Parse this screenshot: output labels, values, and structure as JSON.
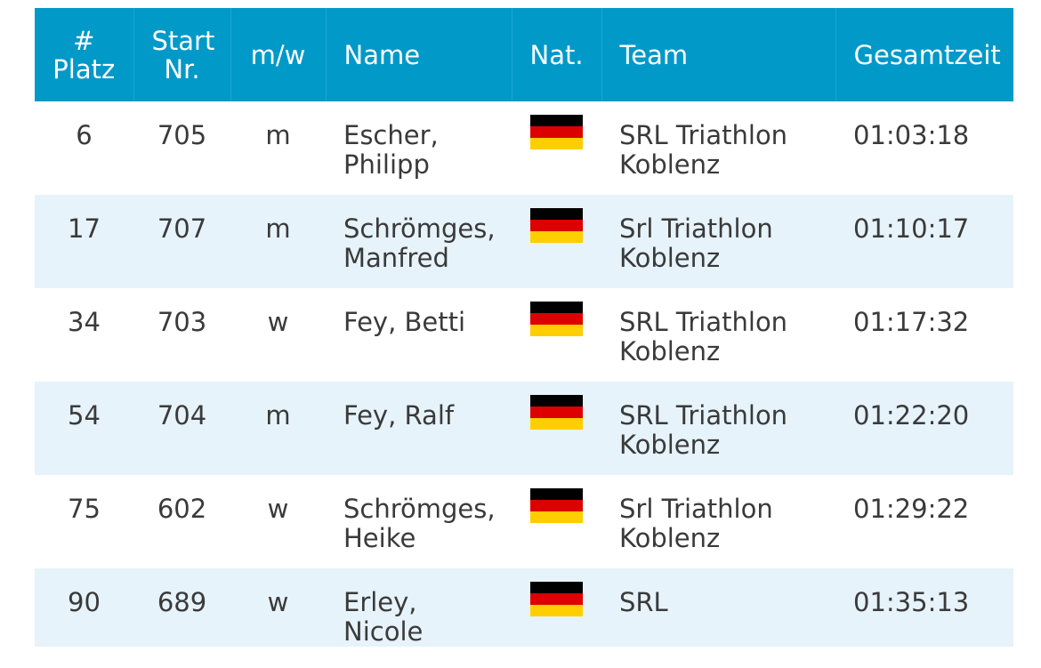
{
  "header": {
    "platz": "#\nPlatz",
    "start_nr": "Start\nNr.",
    "gender": "m/w",
    "name": "Name",
    "nat": "Nat.",
    "team": "Team",
    "gesamtzeit": "Gesamtzeit"
  },
  "colors": {
    "header_bg": "#0099c8",
    "row_alt_bg": "#e6f3fa",
    "text": "#3a3a3a"
  },
  "rows": [
    {
      "platz": "6",
      "start_nr": "705",
      "gender": "m",
      "name": "Escher,\nPhilipp",
      "nat": "german-flag-icon",
      "team": "SRL Triathlon\nKoblenz",
      "time": "01:03:18"
    },
    {
      "platz": "17",
      "start_nr": "707",
      "gender": "m",
      "name": "Schrömges,\nManfred",
      "nat": "german-flag-icon",
      "team": "Srl Triathlon\nKoblenz",
      "time": "01:10:17"
    },
    {
      "platz": "34",
      "start_nr": "703",
      "gender": "w",
      "name": "Fey, Betti",
      "nat": "german-flag-icon",
      "team": "SRL Triathlon\nKoblenz",
      "time": "01:17:32"
    },
    {
      "platz": "54",
      "start_nr": "704",
      "gender": "m",
      "name": "Fey, Ralf",
      "nat": "german-flag-icon",
      "team": "SRL Triathlon\nKoblenz",
      "time": "01:22:20"
    },
    {
      "platz": "75",
      "start_nr": "602",
      "gender": "w",
      "name": "Schrömges,\nHeike",
      "nat": "german-flag-icon",
      "team": "Srl Triathlon\nKoblenz",
      "time": "01:29:22"
    },
    {
      "platz": "90",
      "start_nr": "689",
      "gender": "w",
      "name": "Erley, Nicole",
      "nat": "german-flag-icon",
      "team": "SRL",
      "time": "01:35:13"
    }
  ]
}
